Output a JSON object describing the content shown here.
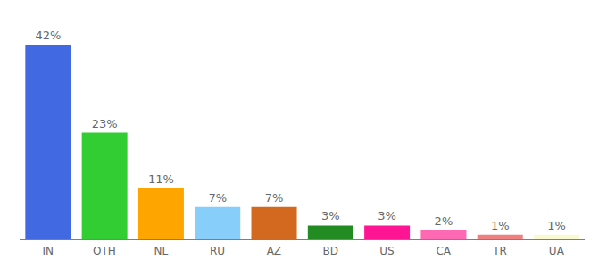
{
  "chart_data": {
    "type": "bar",
    "categories": [
      "IN",
      "OTH",
      "NL",
      "RU",
      "AZ",
      "BD",
      "US",
      "CA",
      "TR",
      "UA"
    ],
    "values": [
      42,
      23,
      11,
      7,
      7,
      3,
      3,
      2,
      1,
      1
    ],
    "value_labels": [
      "42%",
      "23%",
      "11%",
      "7%",
      "7%",
      "3%",
      "3%",
      "2%",
      "1%",
      "1%"
    ],
    "colors": [
      "#4169e1",
      "#32cd32",
      "#ffa500",
      "#87cefa",
      "#d2691e",
      "#228b22",
      "#ff1493",
      "#ff69b4",
      "#f08080",
      "#fafad2"
    ],
    "data_labels": true,
    "tick_labels": "x"
  }
}
